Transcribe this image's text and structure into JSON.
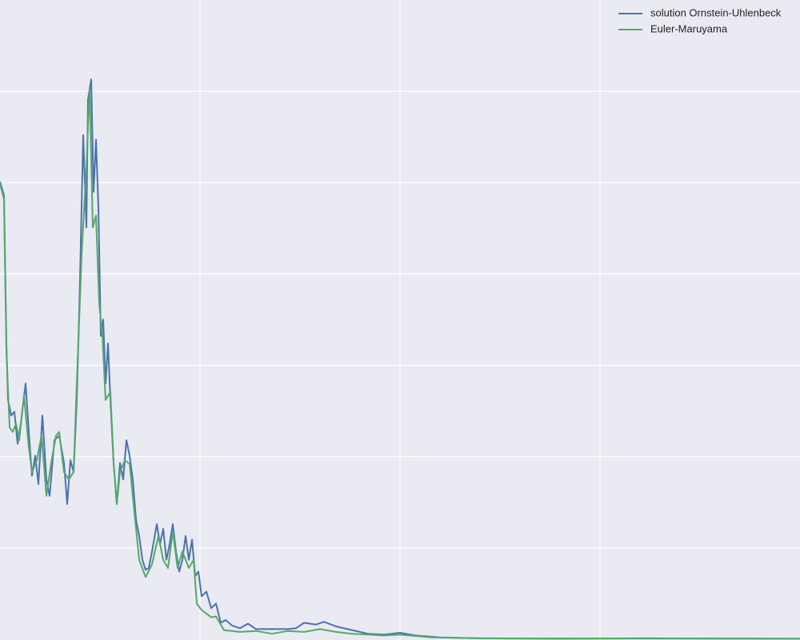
{
  "chart_data": {
    "type": "line",
    "legend": "upper right",
    "grid": true,
    "background": "#eaeaf2",
    "xlim": [
      0,
      4
    ],
    "xticks": [
      1,
      2,
      3
    ],
    "ylim": [
      0,
      7
    ],
    "yticks": [
      1,
      2,
      3,
      4,
      5,
      6
    ],
    "series": [
      {
        "name": "solution Ornstein-Uhlenbeck",
        "color": "#4c72b0",
        "x": [
          0,
          0.02,
          0.032,
          0.04,
          0.056,
          0.072,
          0.088,
          0.104,
          0.128,
          0.144,
          0.16,
          0.176,
          0.192,
          0.212,
          0.232,
          0.248,
          0.272,
          0.296,
          0.32,
          0.336,
          0.352,
          0.368,
          0.384,
          0.4,
          0.416,
          0.432,
          0.44,
          0.456,
          0.468,
          0.48,
          0.492,
          0.504,
          0.516,
          0.528,
          0.54,
          0.552,
          0.568,
          0.584,
          0.6,
          0.616,
          0.632,
          0.648,
          0.664,
          0.68,
          0.696,
          0.712,
          0.728,
          0.744,
          0.76,
          0.784,
          0.8,
          0.816,
          0.832,
          0.848,
          0.864,
          0.88,
          0.896,
          0.912,
          0.928,
          0.944,
          0.96,
          0.976,
          0.992,
          1.008,
          1.032,
          1.056,
          1.08,
          1.104,
          1.128,
          1.16,
          1.2,
          1.24,
          1.28,
          1.32,
          1.38,
          1.44,
          1.48,
          1.52,
          1.58,
          1.62,
          1.68,
          1.76,
          1.84,
          1.92,
          2.0,
          2.08,
          2.2,
          2.4,
          2.8,
          3.2,
          4.0
        ],
        "values": [
          5.01,
          4.86,
          3.24,
          2.62,
          2.45,
          2.49,
          2.14,
          2.36,
          2.8,
          2.27,
          1.79,
          2.01,
          1.7,
          2.45,
          1.75,
          1.57,
          2.18,
          2.23,
          1.93,
          1.48,
          1.96,
          1.83,
          2.62,
          3.94,
          5.52,
          4.51,
          5.91,
          6.13,
          4.9,
          5.47,
          4.73,
          3.32,
          3.5,
          2.8,
          3.24,
          2.62,
          1.93,
          1.48,
          1.93,
          1.75,
          2.18,
          2.01,
          1.75,
          1.31,
          1.13,
          0.87,
          0.76,
          0.78,
          0.96,
          1.26,
          1.04,
          1.21,
          0.87,
          1.04,
          1.26,
          0.96,
          0.74,
          0.87,
          1.13,
          0.87,
          1.09,
          0.69,
          0.74,
          0.47,
          0.52,
          0.34,
          0.39,
          0.18,
          0.21,
          0.15,
          0.12,
          0.17,
          0.11,
          0.11,
          0.11,
          0.11,
          0.12,
          0.18,
          0.16,
          0.19,
          0.14,
          0.1,
          0.06,
          0.05,
          0.07,
          0.04,
          0.02,
          0.01,
          0.005,
          0.01,
          0.005
        ]
      },
      {
        "name": "Euler-Maruyama",
        "color": "#55a868",
        "x": [
          0,
          0.02,
          0.032,
          0.048,
          0.064,
          0.08,
          0.096,
          0.12,
          0.144,
          0.16,
          0.184,
          0.208,
          0.232,
          0.256,
          0.28,
          0.296,
          0.32,
          0.344,
          0.368,
          0.384,
          0.408,
          0.432,
          0.448,
          0.464,
          0.48,
          0.496,
          0.512,
          0.528,
          0.552,
          0.568,
          0.584,
          0.6,
          0.624,
          0.648,
          0.672,
          0.696,
          0.728,
          0.76,
          0.792,
          0.816,
          0.84,
          0.864,
          0.888,
          0.912,
          0.944,
          0.968,
          0.984,
          1.008,
          1.056,
          1.08,
          1.12,
          1.2,
          1.28,
          1.36,
          1.44,
          1.52,
          1.6,
          1.68,
          1.76,
          1.84,
          1.92,
          2.0,
          2.16,
          2.4,
          4.0
        ],
        "values": [
          4.99,
          4.82,
          3.15,
          2.32,
          2.27,
          2.36,
          2.18,
          2.67,
          2.1,
          1.83,
          1.96,
          2.23,
          1.57,
          1.93,
          2.23,
          2.27,
          1.83,
          1.75,
          1.83,
          2.8,
          4.2,
          5.17,
          6.04,
          4.51,
          4.64,
          3.68,
          3.32,
          2.62,
          2.71,
          1.93,
          1.48,
          1.83,
          1.96,
          1.92,
          1.39,
          0.87,
          0.68,
          0.82,
          1.13,
          0.87,
          0.78,
          1.18,
          0.78,
          0.96,
          0.78,
          0.87,
          0.39,
          0.32,
          0.24,
          0.25,
          0.1,
          0.08,
          0.09,
          0.06,
          0.09,
          0.08,
          0.11,
          0.08,
          0.06,
          0.05,
          0.04,
          0.05,
          0.02,
          0.01,
          0.005
        ]
      }
    ]
  }
}
